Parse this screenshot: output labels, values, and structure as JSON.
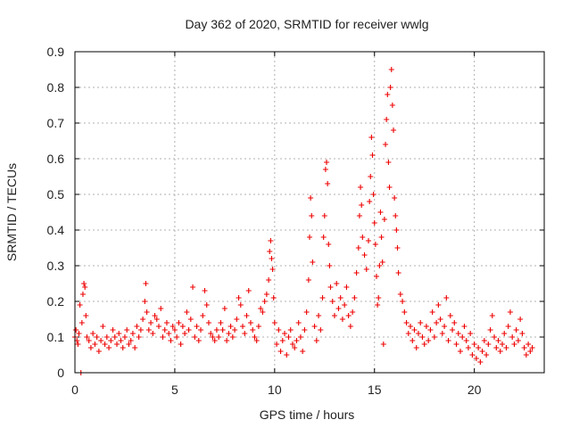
{
  "chart_data": {
    "type": "scatter",
    "title": "Day 362 of 2020, SRMTID for receiver wwlg",
    "xlabel": "GPS time / hours",
    "ylabel": "SRMTID / TECUs",
    "xlim": [
      0,
      23.5
    ],
    "ylim": [
      0,
      0.9
    ],
    "xticks": [
      0,
      5,
      10,
      15,
      20
    ],
    "yticks": [
      0,
      0.1,
      0.2,
      0.3,
      0.4,
      0.5,
      0.6,
      0.7,
      0.8,
      0.9
    ],
    "ytick_labels": [
      "0",
      "0.1",
      "0.2",
      "0.3",
      "0.4",
      "0.5",
      "0.6",
      "0.7",
      "0.8",
      "0.9"
    ],
    "grid": true,
    "marker": "+",
    "color": "#ee0000",
    "series": [
      {
        "name": "SRMTID",
        "points": [
          [
            0.0,
            0.1
          ],
          [
            0.05,
            0.12
          ],
          [
            0.1,
            0.09
          ],
          [
            0.15,
            0.08
          ],
          [
            0.2,
            0.11
          ],
          [
            0.25,
            0.19
          ],
          [
            0.3,
            0.0
          ],
          [
            0.35,
            0.14
          ],
          [
            0.4,
            0.22
          ],
          [
            0.45,
            0.25
          ],
          [
            0.5,
            0.24
          ],
          [
            0.55,
            0.16
          ],
          [
            0.6,
            0.1
          ],
          [
            0.7,
            0.09
          ],
          [
            0.8,
            0.07
          ],
          [
            0.9,
            0.11
          ],
          [
            1.0,
            0.08
          ],
          [
            1.1,
            0.1
          ],
          [
            1.2,
            0.06
          ],
          [
            1.3,
            0.09
          ],
          [
            1.4,
            0.13
          ],
          [
            1.5,
            0.08
          ],
          [
            1.6,
            0.1
          ],
          [
            1.7,
            0.07
          ],
          [
            1.8,
            0.09
          ],
          [
            1.9,
            0.12
          ],
          [
            2.0,
            0.1
          ],
          [
            2.1,
            0.08
          ],
          [
            2.2,
            0.11
          ],
          [
            2.3,
            0.09
          ],
          [
            2.4,
            0.07
          ],
          [
            2.5,
            0.1
          ],
          [
            2.6,
            0.12
          ],
          [
            2.7,
            0.08
          ],
          [
            2.8,
            0.09
          ],
          [
            2.9,
            0.11
          ],
          [
            3.0,
            0.07
          ],
          [
            3.1,
            0.13
          ],
          [
            3.2,
            0.1
          ],
          [
            3.3,
            0.12
          ],
          [
            3.4,
            0.15
          ],
          [
            3.5,
            0.2
          ],
          [
            3.55,
            0.25
          ],
          [
            3.6,
            0.17
          ],
          [
            3.7,
            0.12
          ],
          [
            3.8,
            0.14
          ],
          [
            3.9,
            0.11
          ],
          [
            4.0,
            0.16
          ],
          [
            4.1,
            0.15
          ],
          [
            4.2,
            0.13
          ],
          [
            4.3,
            0.18
          ],
          [
            4.4,
            0.1
          ],
          [
            4.5,
            0.12
          ],
          [
            4.6,
            0.14
          ],
          [
            4.7,
            0.11
          ],
          [
            4.8,
            0.09
          ],
          [
            4.9,
            0.13
          ],
          [
            5.0,
            0.12
          ],
          [
            5.1,
            0.1
          ],
          [
            5.2,
            0.14
          ],
          [
            5.3,
            0.08
          ],
          [
            5.4,
            0.13
          ],
          [
            5.5,
            0.11
          ],
          [
            5.6,
            0.17
          ],
          [
            5.7,
            0.12
          ],
          [
            5.8,
            0.15
          ],
          [
            5.9,
            0.24
          ],
          [
            6.0,
            0.1
          ],
          [
            6.1,
            0.13
          ],
          [
            6.2,
            0.09
          ],
          [
            6.3,
            0.12
          ],
          [
            6.4,
            0.16
          ],
          [
            6.5,
            0.23
          ],
          [
            6.6,
            0.19
          ],
          [
            6.7,
            0.14
          ],
          [
            6.8,
            0.11
          ],
          [
            6.9,
            0.1
          ],
          [
            7.0,
            0.09
          ],
          [
            7.1,
            0.12
          ],
          [
            7.2,
            0.1
          ],
          [
            7.3,
            0.14
          ],
          [
            7.4,
            0.12
          ],
          [
            7.5,
            0.18
          ],
          [
            7.6,
            0.09
          ],
          [
            7.7,
            0.11
          ],
          [
            7.8,
            0.13
          ],
          [
            7.9,
            0.1
          ],
          [
            8.0,
            0.12
          ],
          [
            8.1,
            0.15
          ],
          [
            8.2,
            0.21
          ],
          [
            8.3,
            0.19
          ],
          [
            8.4,
            0.13
          ],
          [
            8.5,
            0.11
          ],
          [
            8.6,
            0.16
          ],
          [
            8.7,
            0.23
          ],
          [
            8.8,
            0.14
          ],
          [
            8.9,
            0.12
          ],
          [
            9.0,
            0.1
          ],
          [
            9.1,
            0.09
          ],
          [
            9.2,
            0.13
          ],
          [
            9.3,
            0.18
          ],
          [
            9.4,
            0.17
          ],
          [
            9.5,
            0.2
          ],
          [
            9.6,
            0.22
          ],
          [
            9.7,
            0.26
          ],
          [
            9.75,
            0.34
          ],
          [
            9.8,
            0.37
          ],
          [
            9.85,
            0.32
          ],
          [
            9.9,
            0.29
          ],
          [
            9.95,
            0.21
          ],
          [
            10.0,
            0.14
          ],
          [
            10.1,
            0.08
          ],
          [
            10.2,
            0.12
          ],
          [
            10.3,
            0.06
          ],
          [
            10.4,
            0.09
          ],
          [
            10.5,
            0.11
          ],
          [
            10.6,
            0.05
          ],
          [
            10.7,
            0.1
          ],
          [
            10.8,
            0.12
          ],
          [
            10.9,
            0.08
          ],
          [
            11.0,
            0.07
          ],
          [
            11.1,
            0.09
          ],
          [
            11.2,
            0.14
          ],
          [
            11.3,
            0.1
          ],
          [
            11.4,
            0.06
          ],
          [
            11.5,
            0.12
          ],
          [
            11.6,
            0.17
          ],
          [
            11.7,
            0.26
          ],
          [
            11.75,
            0.38
          ],
          [
            11.8,
            0.49
          ],
          [
            11.85,
            0.44
          ],
          [
            11.9,
            0.31
          ],
          [
            12.0,
            0.13
          ],
          [
            12.1,
            0.09
          ],
          [
            12.2,
            0.16
          ],
          [
            12.3,
            0.12
          ],
          [
            12.4,
            0.21
          ],
          [
            12.45,
            0.38
          ],
          [
            12.5,
            0.44
          ],
          [
            12.55,
            0.57
          ],
          [
            12.6,
            0.59
          ],
          [
            12.65,
            0.53
          ],
          [
            12.7,
            0.36
          ],
          [
            12.75,
            0.3
          ],
          [
            12.8,
            0.24
          ],
          [
            12.9,
            0.2
          ],
          [
            13.0,
            0.16
          ],
          [
            13.1,
            0.25
          ],
          [
            13.2,
            0.18
          ],
          [
            13.3,
            0.21
          ],
          [
            13.4,
            0.15
          ],
          [
            13.5,
            0.19
          ],
          [
            13.6,
            0.24
          ],
          [
            13.7,
            0.16
          ],
          [
            13.8,
            0.13
          ],
          [
            13.9,
            0.17
          ],
          [
            14.0,
            0.21
          ],
          [
            14.1,
            0.28
          ],
          [
            14.2,
            0.35
          ],
          [
            14.25,
            0.44
          ],
          [
            14.3,
            0.52
          ],
          [
            14.35,
            0.47
          ],
          [
            14.4,
            0.38
          ],
          [
            14.5,
            0.33
          ],
          [
            14.6,
            0.29
          ],
          [
            14.7,
            0.37
          ],
          [
            14.75,
            0.48
          ],
          [
            14.8,
            0.55
          ],
          [
            14.85,
            0.66
          ],
          [
            14.9,
            0.61
          ],
          [
            14.95,
            0.5
          ],
          [
            15.0,
            0.42
          ],
          [
            15.05,
            0.36
          ],
          [
            15.1,
            0.27
          ],
          [
            15.15,
            0.19
          ],
          [
            15.2,
            0.21
          ],
          [
            15.25,
            0.3
          ],
          [
            15.3,
            0.45
          ],
          [
            15.35,
            0.38
          ],
          [
            15.4,
            0.31
          ],
          [
            15.45,
            0.08
          ],
          [
            15.5,
            0.43
          ],
          [
            15.55,
            0.64
          ],
          [
            15.6,
            0.71
          ],
          [
            15.65,
            0.78
          ],
          [
            15.7,
            0.59
          ],
          [
            15.75,
            0.52
          ],
          [
            15.8,
            0.8
          ],
          [
            15.85,
            0.85
          ],
          [
            15.9,
            0.75
          ],
          [
            15.95,
            0.68
          ],
          [
            16.0,
            0.49
          ],
          [
            16.05,
            0.44
          ],
          [
            16.1,
            0.4
          ],
          [
            16.15,
            0.35
          ],
          [
            16.2,
            0.28
          ],
          [
            16.3,
            0.22
          ],
          [
            16.4,
            0.2
          ],
          [
            16.5,
            0.17
          ],
          [
            16.6,
            0.14
          ],
          [
            16.7,
            0.11
          ],
          [
            16.8,
            0.13
          ],
          [
            16.9,
            0.09
          ],
          [
            17.0,
            0.12
          ],
          [
            17.1,
            0.07
          ],
          [
            17.2,
            0.11
          ],
          [
            17.3,
            0.14
          ],
          [
            17.4,
            0.1
          ],
          [
            17.5,
            0.08
          ],
          [
            17.6,
            0.13
          ],
          [
            17.7,
            0.09
          ],
          [
            17.8,
            0.12
          ],
          [
            17.9,
            0.17
          ],
          [
            18.0,
            0.1
          ],
          [
            18.1,
            0.14
          ],
          [
            18.2,
            0.19
          ],
          [
            18.3,
            0.15
          ],
          [
            18.4,
            0.11
          ],
          [
            18.5,
            0.13
          ],
          [
            18.6,
            0.21
          ],
          [
            18.7,
            0.09
          ],
          [
            18.8,
            0.16
          ],
          [
            18.9,
            0.12
          ],
          [
            19.0,
            0.14
          ],
          [
            19.1,
            0.08
          ],
          [
            19.2,
            0.11
          ],
          [
            19.3,
            0.06
          ],
          [
            19.4,
            0.1
          ],
          [
            19.5,
            0.13
          ],
          [
            19.6,
            0.09
          ],
          [
            19.7,
            0.07
          ],
          [
            19.8,
            0.11
          ],
          [
            19.9,
            0.05
          ],
          [
            20.0,
            0.08
          ],
          [
            20.1,
            0.04
          ],
          [
            20.2,
            0.07
          ],
          [
            20.3,
            0.03
          ],
          [
            20.4,
            0.06
          ],
          [
            20.5,
            0.09
          ],
          [
            20.6,
            0.05
          ],
          [
            20.7,
            0.08
          ],
          [
            20.8,
            0.12
          ],
          [
            20.9,
            0.16
          ],
          [
            21.0,
            0.1
          ],
          [
            21.1,
            0.07
          ],
          [
            21.2,
            0.09
          ],
          [
            21.3,
            0.06
          ],
          [
            21.4,
            0.08
          ],
          [
            21.5,
            0.11
          ],
          [
            21.6,
            0.07
          ],
          [
            21.7,
            0.13
          ],
          [
            21.8,
            0.17
          ],
          [
            21.9,
            0.1
          ],
          [
            22.0,
            0.08
          ],
          [
            22.1,
            0.12
          ],
          [
            22.2,
            0.09
          ],
          [
            22.3,
            0.15
          ],
          [
            22.4,
            0.11
          ],
          [
            22.5,
            0.07
          ],
          [
            22.6,
            0.05
          ],
          [
            22.7,
            0.08
          ],
          [
            22.8,
            0.06
          ],
          [
            22.9,
            0.07
          ]
        ]
      }
    ]
  }
}
